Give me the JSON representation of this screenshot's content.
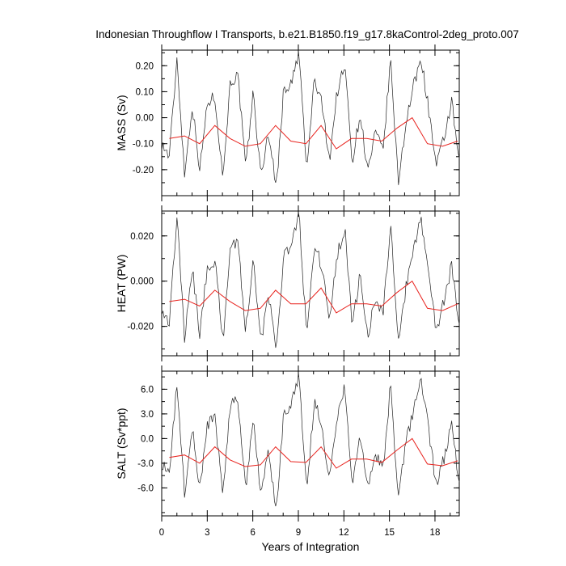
{
  "chart_data": {
    "title": "Indonesian Throughflow I Transports, b.e21.B1850.f19_g17.8kaControl-2deg_proto.007",
    "type": "line",
    "xlabel": "Years of Integration",
    "xlim": [
      0,
      19.6
    ],
    "xticks": [
      0,
      3,
      6,
      9,
      12,
      15,
      18
    ],
    "xtick_labels": [
      "0",
      "3",
      "6",
      "9",
      "12",
      "15",
      "18"
    ],
    "annual_years": [
      0.5,
      1.5,
      2.5,
      3.5,
      4.5,
      5.5,
      6.5,
      7.5,
      8.5,
      9.5,
      10.5,
      11.5,
      12.5,
      13.5,
      14.5,
      15.5,
      16.5,
      17.5,
      18.5,
      19.5
    ],
    "panels": [
      {
        "name": "mass",
        "ylabel": "MASS (Sv)",
        "ylim": [
          -0.3,
          0.26
        ],
        "yticks": [
          0.2,
          0.1,
          0.0,
          -0.1,
          -0.2
        ],
        "ytick_labels": [
          "0.20",
          "0.10",
          "0.00",
          "-0.10",
          "-0.20"
        ],
        "annual_mean": [
          -0.08,
          -0.07,
          -0.1,
          -0.03,
          -0.08,
          -0.11,
          -0.1,
          -0.03,
          -0.09,
          -0.1,
          -0.03,
          -0.12,
          -0.08,
          -0.08,
          -0.09,
          -0.04,
          0.0,
          -0.1,
          -0.11,
          -0.09
        ],
        "monthly_anchor": [
          -0.1,
          -0.15,
          0.23,
          -0.22,
          0.05,
          -0.2,
          0.06,
          0.08,
          -0.23,
          0.14,
          0.16,
          -0.2,
          0.1,
          -0.23,
          -0.05,
          -0.27,
          0.11,
          0.13,
          0.25,
          -0.21,
          0.15,
          0.05,
          -0.16,
          0.1,
          0.2,
          -0.17,
          0.02,
          -0.21,
          -0.06,
          -0.13,
          0.22,
          -0.25,
          -0.02,
          0.12,
          0.23,
          0.03,
          -0.19,
          -0.08,
          0.06,
          -0.18
        ]
      },
      {
        "name": "heat",
        "ylabel": "HEAT (PW)",
        "ylim": [
          -0.033,
          0.031
        ],
        "yticks": [
          0.02,
          0.0,
          -0.02
        ],
        "ytick_labels": [
          "0.020",
          "0.000",
          "-0.020"
        ],
        "annual_mean": [
          -0.009,
          -0.008,
          -0.011,
          -0.004,
          -0.009,
          -0.013,
          -0.012,
          -0.004,
          -0.01,
          -0.01,
          -0.003,
          -0.014,
          -0.01,
          -0.01,
          -0.011,
          -0.005,
          0.0,
          -0.012,
          -0.013,
          -0.01
        ],
        "monthly_anchor": [
          -0.012,
          -0.018,
          0.029,
          -0.026,
          0.006,
          -0.024,
          0.007,
          0.009,
          -0.027,
          0.016,
          0.018,
          -0.023,
          0.011,
          -0.027,
          -0.006,
          -0.032,
          0.013,
          0.015,
          0.03,
          -0.025,
          0.017,
          0.006,
          -0.019,
          0.012,
          0.023,
          -0.02,
          0.003,
          -0.025,
          -0.007,
          -0.015,
          0.025,
          -0.029,
          -0.003,
          0.014,
          0.027,
          0.004,
          -0.022,
          -0.009,
          0.007,
          -0.021
        ]
      },
      {
        "name": "salt",
        "ylabel": "SALT (Sv*ppt)",
        "ylim": [
          -9.4,
          8.2
        ],
        "yticks": [
          6.0,
          3.0,
          0.0,
          -3.0,
          -6.0
        ],
        "ytick_labels": [
          "6.0",
          "3.0",
          "0.0",
          "-3.0",
          "-6.0"
        ],
        "annual_mean": [
          -2.3,
          -2.0,
          -3.0,
          -1.0,
          -2.6,
          -3.4,
          -3.2,
          -1.0,
          -2.8,
          -2.9,
          -1.0,
          -3.6,
          -2.5,
          -2.5,
          -2.9,
          -1.4,
          0.0,
          -3.1,
          -3.3,
          -2.7
        ],
        "monthly_anchor": [
          -3.0,
          -4.6,
          6.8,
          -6.8,
          1.5,
          -6.3,
          1.8,
          2.4,
          -7.0,
          4.2,
          4.8,
          -6.2,
          3.0,
          -7.1,
          -1.5,
          -9.0,
          3.4,
          4.0,
          8.0,
          -6.6,
          4.6,
          1.5,
          -5.0,
          3.0,
          6.2,
          -5.3,
          0.6,
          -6.5,
          -1.8,
          -4.0,
          6.7,
          -7.6,
          -0.6,
          3.6,
          7.3,
          0.9,
          -5.8,
          -2.4,
          1.8,
          -5.6
        ]
      }
    ]
  }
}
